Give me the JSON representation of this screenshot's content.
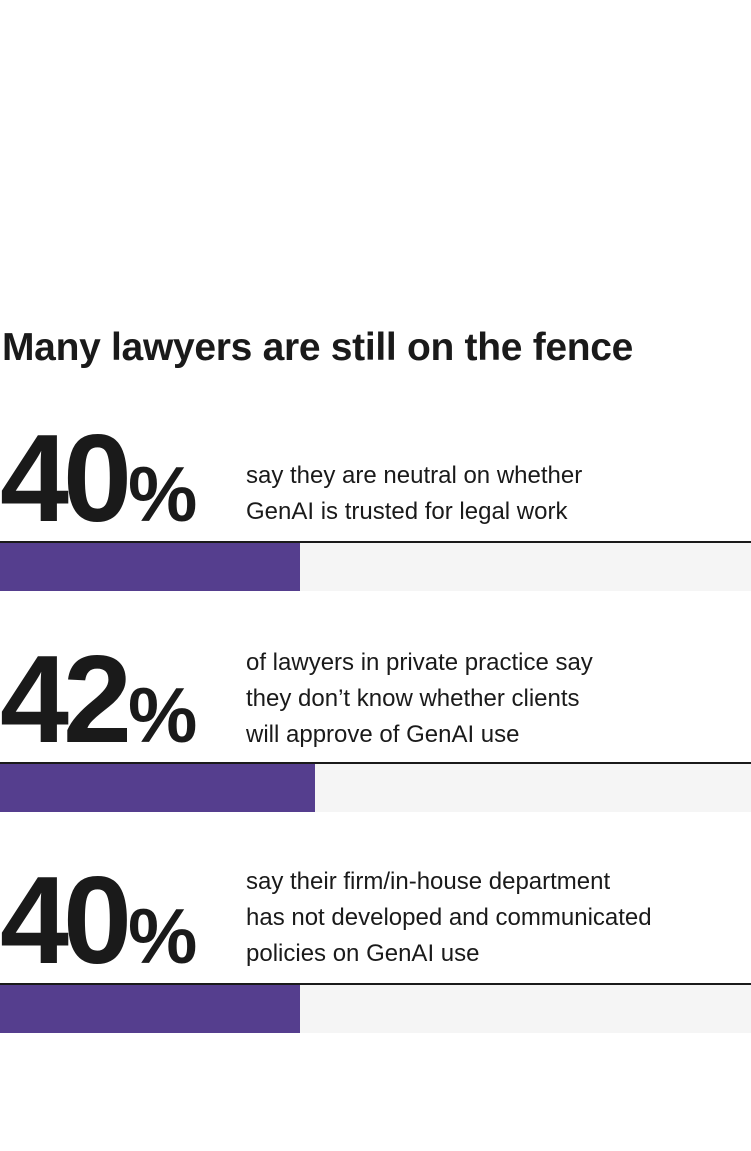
{
  "title": "Many lawyers are still on the fence",
  "colors": {
    "bar_fill": "#553e8e",
    "bar_track": "#f5f5f5",
    "rule": "#1a1a1a",
    "text": "#1a1a1a"
  },
  "chart_data": {
    "type": "bar",
    "title": "Many lawyers are still on the fence",
    "orientation": "horizontal",
    "ylim": [
      0,
      100
    ],
    "items": [
      {
        "value": 40,
        "display": "40",
        "unit": "%",
        "text_lines": [
          "say they are neutral on whether",
          "GenAI is trusted for legal work"
        ]
      },
      {
        "value": 42,
        "display": "42",
        "unit": "%",
        "text_lines": [
          "of lawyers in private practice say",
          "they don’t know whether clients",
          "will approve of GenAI use"
        ]
      },
      {
        "value": 40,
        "display": "40",
        "unit": "%",
        "text_lines": [
          "say their firm/in-house department",
          "has not developed and communicated",
          "policies on GenAI use"
        ]
      }
    ]
  }
}
